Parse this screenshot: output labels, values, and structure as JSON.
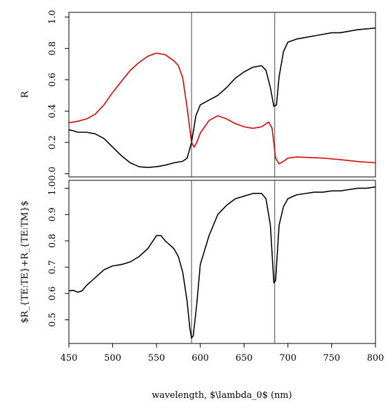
{
  "chart_data": {
    "type": "line",
    "xlabel": "wavelength, $\\lambda_0$ (nm)",
    "xlim": [
      450,
      800
    ],
    "x_ticks": [
      "450",
      "500",
      "550",
      "600",
      "650",
      "700",
      "750",
      "800"
    ],
    "vlines": [
      590,
      685
    ],
    "panels": [
      {
        "ylabel": "R",
        "ylim": [
          -0.02,
          1.03
        ],
        "y_ticks": [
          "0.0",
          "0.2",
          "0.4",
          "0.6",
          "0.8",
          "1.0"
        ],
        "series": [
          {
            "color": "#000000",
            "points": [
              [
                450,
                0.28
              ],
              [
                455,
                0.275
              ],
              [
                460,
                0.265
              ],
              [
                470,
                0.265
              ],
              [
                480,
                0.255
              ],
              [
                490,
                0.225
              ],
              [
                500,
                0.17
              ],
              [
                510,
                0.115
              ],
              [
                520,
                0.07
              ],
              [
                530,
                0.045
              ],
              [
                540,
                0.04
              ],
              [
                550,
                0.045
              ],
              [
                560,
                0.055
              ],
              [
                570,
                0.07
              ],
              [
                580,
                0.08
              ],
              [
                585,
                0.1
              ],
              [
                590,
                0.2
              ],
              [
                595,
                0.37
              ],
              [
                600,
                0.44
              ],
              [
                610,
                0.47
              ],
              [
                620,
                0.5
              ],
              [
                630,
                0.55
              ],
              [
                640,
                0.61
              ],
              [
                650,
                0.65
              ],
              [
                660,
                0.68
              ],
              [
                670,
                0.69
              ],
              [
                675,
                0.66
              ],
              [
                680,
                0.55
              ],
              [
                684,
                0.43
              ],
              [
                687,
                0.44
              ],
              [
                690,
                0.62
              ],
              [
                695,
                0.78
              ],
              [
                700,
                0.84
              ],
              [
                710,
                0.86
              ],
              [
                720,
                0.87
              ],
              [
                730,
                0.88
              ],
              [
                740,
                0.89
              ],
              [
                750,
                0.9
              ],
              [
                760,
                0.9
              ],
              [
                770,
                0.91
              ],
              [
                780,
                0.92
              ],
              [
                790,
                0.925
              ],
              [
                800,
                0.93
              ]
            ]
          },
          {
            "color": "#e00000",
            "points": [
              [
                450,
                0.325
              ],
              [
                460,
                0.335
              ],
              [
                470,
                0.35
              ],
              [
                480,
                0.38
              ],
              [
                490,
                0.44
              ],
              [
                500,
                0.52
              ],
              [
                510,
                0.59
              ],
              [
                520,
                0.66
              ],
              [
                530,
                0.71
              ],
              [
                540,
                0.75
              ],
              [
                550,
                0.77
              ],
              [
                560,
                0.76
              ],
              [
                570,
                0.72
              ],
              [
                575,
                0.69
              ],
              [
                580,
                0.61
              ],
              [
                585,
                0.42
              ],
              [
                590,
                0.2
              ],
              [
                593,
                0.17
              ],
              [
                596,
                0.2
              ],
              [
                600,
                0.26
              ],
              [
                610,
                0.34
              ],
              [
                620,
                0.37
              ],
              [
                630,
                0.35
              ],
              [
                640,
                0.32
              ],
              [
                650,
                0.3
              ],
              [
                660,
                0.29
              ],
              [
                670,
                0.3
              ],
              [
                678,
                0.33
              ],
              [
                682,
                0.29
              ],
              [
                686,
                0.1
              ],
              [
                690,
                0.063
              ],
              [
                695,
                0.08
              ],
              [
                700,
                0.1
              ],
              [
                710,
                0.107
              ],
              [
                720,
                0.105
              ],
              [
                740,
                0.1
              ],
              [
                760,
                0.09
              ],
              [
                780,
                0.078
              ],
              [
                800,
                0.07
              ]
            ]
          }
        ]
      },
      {
        "ylabel": "$R_{TE:TE}+R_{TE:TM}$",
        "ylim": [
          0.41,
          1.03
        ],
        "y_ticks": [
          "0.5",
          "0.6",
          "0.7",
          "0.8",
          "0.9",
          "1.0"
        ],
        "series": [
          {
            "color": "#000000",
            "points": [
              [
                450,
                0.61
              ],
              [
                455,
                0.612
              ],
              [
                460,
                0.605
              ],
              [
                465,
                0.61
              ],
              [
                470,
                0.63
              ],
              [
                480,
                0.66
              ],
              [
                490,
                0.69
              ],
              [
                500,
                0.705
              ],
              [
                510,
                0.71
              ],
              [
                520,
                0.72
              ],
              [
                530,
                0.74
              ],
              [
                540,
                0.77
              ],
              [
                550,
                0.82
              ],
              [
                555,
                0.82
              ],
              [
                560,
                0.8
              ],
              [
                570,
                0.77
              ],
              [
                575,
                0.74
              ],
              [
                580,
                0.68
              ],
              [
                585,
                0.57
              ],
              [
                588,
                0.47
              ],
              [
                590,
                0.43
              ],
              [
                592,
                0.44
              ],
              [
                596,
                0.56
              ],
              [
                600,
                0.71
              ],
              [
                610,
                0.82
              ],
              [
                620,
                0.9
              ],
              [
                630,
                0.935
              ],
              [
                640,
                0.96
              ],
              [
                650,
                0.97
              ],
              [
                655,
                0.975
              ],
              [
                660,
                0.98
              ],
              [
                670,
                0.98
              ],
              [
                675,
                0.96
              ],
              [
                680,
                0.86
              ],
              [
                684,
                0.64
              ],
              [
                686,
                0.65
              ],
              [
                690,
                0.86
              ],
              [
                695,
                0.93
              ],
              [
                700,
                0.96
              ],
              [
                710,
                0.975
              ],
              [
                720,
                0.98
              ],
              [
                730,
                0.985
              ],
              [
                740,
                0.985
              ],
              [
                750,
                0.99
              ],
              [
                760,
                0.99
              ],
              [
                770,
                0.995
              ],
              [
                780,
                1.0
              ],
              [
                790,
                1.0
              ],
              [
                800,
                1.005
              ]
            ]
          }
        ]
      }
    ]
  }
}
